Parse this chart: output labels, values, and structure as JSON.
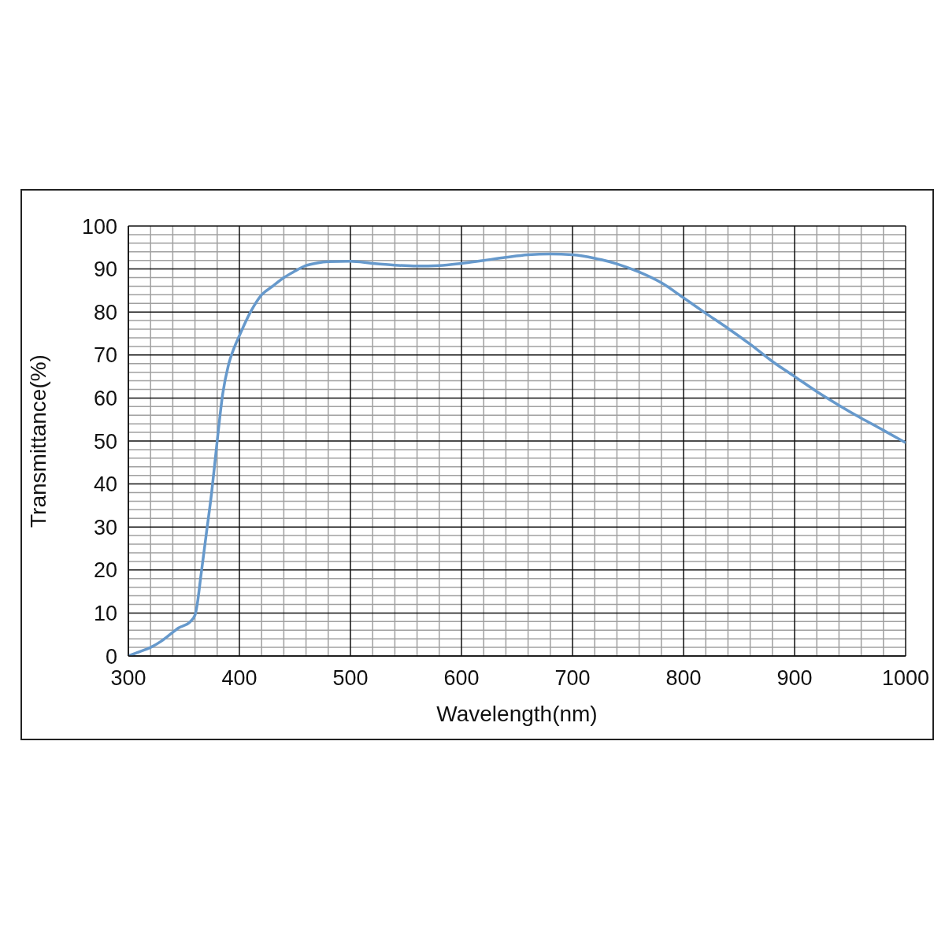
{
  "chart_data": {
    "type": "line",
    "xlabel": "Wavelength(nm)",
    "ylabel": "Transmittance(%)",
    "x": [
      300,
      310,
      320,
      330,
      340,
      345,
      355,
      360,
      362,
      365,
      370,
      375,
      380,
      385,
      390,
      395,
      400,
      410,
      420,
      430,
      440,
      450,
      460,
      470,
      480,
      500,
      520,
      540,
      560,
      580,
      600,
      620,
      640,
      660,
      680,
      700,
      720,
      740,
      760,
      780,
      800,
      820,
      840,
      860,
      880,
      900,
      920,
      940,
      960,
      980,
      1000
    ],
    "series": [
      {
        "color": "#6699cc",
        "values": [
          0,
          1,
          2,
          3.5,
          5.5,
          6.5,
          7.8,
          9.5,
          12,
          18,
          28,
          38,
          50,
          61,
          67.5,
          71.5,
          74.5,
          80,
          84,
          86,
          88,
          89.5,
          90.8,
          91.4,
          91.7,
          91.8,
          91.3,
          90.9,
          90.7,
          90.8,
          91.3,
          92,
          92.7,
          93.3,
          93.5,
          93.3,
          92.5,
          91.2,
          89.3,
          86.8,
          83.3,
          79.7,
          76.2,
          72.5,
          68.5,
          65,
          61.5,
          58.3,
          55.3,
          52.5,
          49.6
        ]
      }
    ],
    "xlim": [
      300,
      1000
    ],
    "xticks": [
      300,
      400,
      500,
      600,
      700,
      800,
      900,
      1000
    ],
    "ylim": [
      0,
      100
    ],
    "yticks": [
      0,
      10,
      20,
      30,
      40,
      50,
      60,
      70,
      80,
      90,
      100
    ],
    "grid": true,
    "marker": "none",
    "line_style": "solid"
  }
}
